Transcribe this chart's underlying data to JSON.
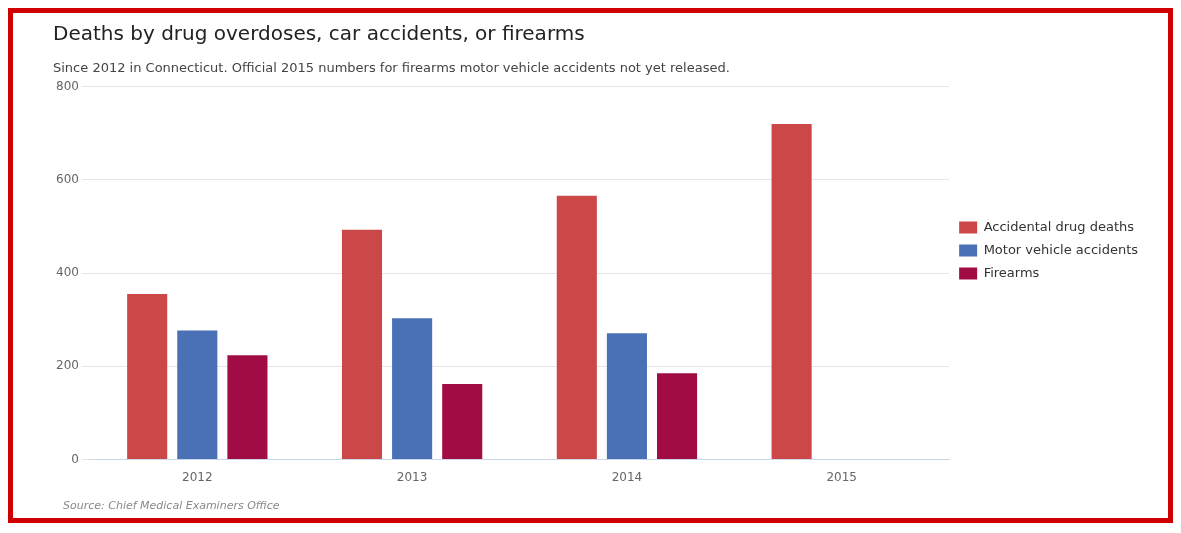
{
  "chart_data": {
    "type": "bar",
    "title": "Deaths by drug overdoses, car accidents, or firearms",
    "subtitle": "Since 2012 in Connecticut. Official 2015 numbers for firearms motor vehicle accidents not yet released.",
    "categories": [
      "2012",
      "2013",
      "2014",
      "2015"
    ],
    "series": [
      {
        "name": "Accidental drug deaths",
        "color": "#cc4748",
        "values": [
          355,
          493,
          566,
          720
        ]
      },
      {
        "name": "Motor vehicle accidents",
        "color": "#4a70b5",
        "values": [
          277,
          303,
          271,
          null
        ]
      },
      {
        "name": "Firearms",
        "color": "#a10c44",
        "values": [
          224,
          162,
          185,
          null
        ]
      }
    ],
    "ylim": [
      0,
      800
    ],
    "yticks": [
      0,
      200,
      400,
      600,
      800
    ],
    "grid": "y",
    "legend": "right",
    "annotations": [
      "Source: Chief Medical Examiners Office"
    ]
  }
}
